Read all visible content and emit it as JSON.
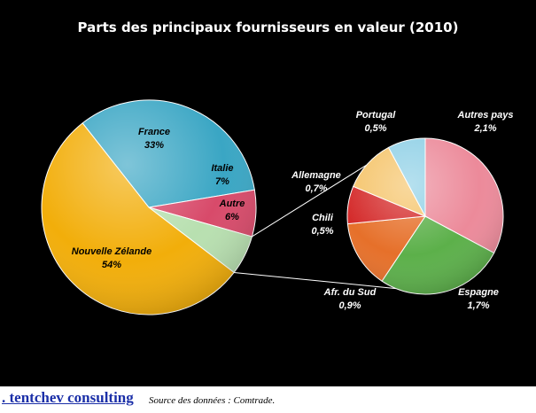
{
  "chart_data": {
    "type": "pie",
    "title": "Parts des principaux fournisseurs en valeur (2010)",
    "main_pie": {
      "slices": [
        {
          "label": "France",
          "value_label": "33%",
          "value": 33,
          "color": "#3aa6c4"
        },
        {
          "label": "Italie",
          "value_label": "7%",
          "value": 7,
          "color": "#d84a6a"
        },
        {
          "label": "Autre",
          "value_label": "6%",
          "value": 6,
          "color": "#b8e0b0"
        },
        {
          "label": "Nouvelle Zélande",
          "value_label": "54%",
          "value": 54,
          "color": "#f2ae0a"
        }
      ]
    },
    "detail_pie": {
      "slices": [
        {
          "label": "Autres pays",
          "value_label": "2,1%",
          "value": 2.1,
          "color": "#ec8a9a"
        },
        {
          "label": "Espagne",
          "value_label": "1,7%",
          "value": 1.7,
          "color": "#5cb04a"
        },
        {
          "label": "Afr. du Sud",
          "value_label": "0,9%",
          "value": 0.9,
          "color": "#e6702a"
        },
        {
          "label": "Chili",
          "value_label": "0,5%",
          "value": 0.5,
          "color": "#d42a2a"
        },
        {
          "label": "Allemagne",
          "value_label": "0,7%",
          "value": 0.7,
          "color": "#f5c46a"
        },
        {
          "label": "Portugal",
          "value_label": "0,5%",
          "value": 0.5,
          "color": "#8fd0e6"
        }
      ]
    }
  },
  "footer": {
    "brand": ". tentchev consulting",
    "source": "Source des données : Comtrade."
  }
}
